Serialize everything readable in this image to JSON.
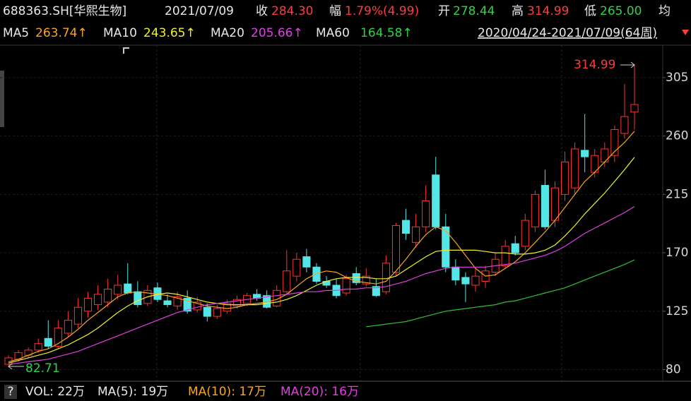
{
  "header": {
    "symbol": "688363.SH[华熙生物]",
    "date": "2021/07/09",
    "close_label": "收",
    "close": "284.30",
    "change_label": "幅",
    "change": "1.79%(4.99)",
    "open_label": "开",
    "open": "278.44",
    "high_label": "高",
    "high": "314.99",
    "low_label": "低",
    "low": "265.00",
    "avg_label": "均",
    "ma_values": [
      "263.74↑",
      "243.65↑",
      "205.66↑",
      "164.58↑"
    ],
    "range": "2020/04/24-2021/07/09(64周)"
  },
  "chart_data": {
    "type": "candlestick",
    "open": [
      84,
      88,
      91,
      95,
      104,
      98,
      108,
      115,
      125,
      130,
      132,
      138,
      146,
      140,
      131,
      143,
      133,
      129,
      135,
      126,
      128,
      121,
      125,
      129,
      131,
      138,
      137,
      129,
      140,
      152,
      167,
      159,
      148,
      145,
      139,
      154,
      146,
      144,
      140,
      155,
      195,
      178,
      190,
      230,
      190,
      159,
      151,
      145,
      148,
      155,
      160,
      177,
      175,
      190,
      222,
      195,
      215,
      220,
      249,
      232,
      240,
      245,
      262,
      278.44
    ],
    "high": [
      91,
      95,
      97,
      104,
      118,
      118,
      125,
      135,
      140,
      145,
      150,
      153,
      162,
      148,
      145,
      147,
      138,
      140,
      141,
      136,
      131,
      130,
      134,
      137,
      139,
      142,
      141,
      145,
      172,
      170,
      173,
      162,
      152,
      150,
      153,
      159,
      158,
      150,
      168,
      193,
      204,
      200,
      222,
      244,
      200,
      165,
      155,
      158,
      160,
      170,
      180,
      183,
      200,
      218,
      234,
      225,
      248,
      255,
      277,
      250,
      255,
      268,
      300,
      314.99
    ],
    "low": [
      82.71,
      86,
      89,
      93,
      96,
      96,
      105,
      112,
      120,
      126,
      128,
      134,
      138,
      128,
      129,
      132,
      128,
      126,
      123,
      124,
      117,
      119,
      123,
      127,
      129,
      133,
      127,
      128,
      138,
      148,
      155,
      146,
      143,
      135,
      137,
      145,
      144,
      136,
      138,
      152,
      180,
      174,
      186,
      188,
      155,
      145,
      132,
      140,
      143,
      152,
      158,
      168,
      172,
      186,
      188,
      190,
      210,
      215,
      232,
      228,
      236,
      240,
      258,
      265.0
    ],
    "close": [
      89,
      93,
      95,
      100,
      98,
      112,
      118,
      128,
      135,
      138,
      142,
      145,
      139,
      130,
      141,
      134,
      130,
      136,
      125,
      132,
      121,
      127,
      131,
      134,
      137,
      135,
      128,
      141,
      156,
      165,
      159,
      148,
      145,
      137,
      150,
      147,
      152,
      137,
      162,
      191,
      185,
      190,
      210,
      190,
      159,
      149,
      146,
      152,
      156,
      165,
      175,
      170,
      195,
      215,
      190,
      220,
      240,
      250,
      244,
      245,
      250,
      265,
      275,
      284.3
    ],
    "up_color": "#ff3232",
    "down_color": "#54e6e6",
    "series": [
      {
        "name": "MA5",
        "color": "#f5a623",
        "values": [
          86,
          88,
          91,
          94,
          96,
          100,
          105,
          111,
          118,
          124,
          130,
          136,
          139,
          140,
          139,
          138,
          137,
          135,
          133,
          131,
          129,
          128,
          127,
          128,
          130,
          131,
          132,
          134,
          138,
          144,
          150,
          154,
          156,
          155,
          151,
          148,
          147,
          146,
          148,
          156,
          165,
          175,
          184,
          190,
          187,
          178,
          168,
          158,
          152,
          153,
          158,
          163,
          170,
          178,
          186,
          195,
          205,
          215,
          225,
          232,
          240,
          248,
          255,
          263.74
        ]
      },
      {
        "name": "MA10",
        "color": "#f0f030",
        "values": [
          85,
          87,
          89,
          91,
          93,
          96,
          99,
          103,
          107,
          112,
          118,
          124,
          129,
          133,
          136,
          138,
          139,
          138,
          136,
          134,
          132,
          131,
          130,
          130,
          130,
          130,
          131,
          132,
          134,
          137,
          141,
          145,
          148,
          150,
          151,
          151,
          151,
          150,
          150,
          152,
          157,
          162,
          167,
          171,
          172,
          172,
          172,
          172,
          171,
          170,
          170,
          169,
          169,
          170,
          172,
          176,
          183,
          191,
          200,
          208,
          216,
          225,
          234,
          243.65
        ]
      },
      {
        "name": "MA20",
        "color": "#e040e0",
        "values": [
          84,
          85,
          86,
          87,
          88,
          90,
          92,
          94,
          97,
          100,
          103,
          106,
          109,
          112,
          115,
          118,
          121,
          124,
          126,
          128,
          130,
          131,
          132,
          133,
          134,
          135,
          136,
          137,
          138,
          139,
          140,
          140,
          141,
          141,
          142,
          142,
          143,
          143,
          144,
          146,
          148,
          151,
          154,
          156,
          158,
          159,
          159,
          159,
          159,
          160,
          161,
          162,
          164,
          166,
          168,
          171,
          175,
          180,
          185,
          189,
          193,
          197,
          201,
          205.66
        ]
      },
      {
        "name": "MA60",
        "color": "#2fc03a",
        "values": [
          null,
          null,
          null,
          null,
          null,
          null,
          null,
          null,
          null,
          null,
          null,
          null,
          null,
          null,
          null,
          null,
          null,
          null,
          null,
          null,
          null,
          null,
          null,
          null,
          null,
          null,
          null,
          null,
          null,
          null,
          null,
          null,
          null,
          null,
          null,
          null,
          113,
          114,
          115,
          116,
          117,
          119,
          121,
          123,
          125,
          126,
          127,
          128,
          129,
          130,
          132,
          133,
          135,
          137,
          139,
          141,
          143,
          146,
          149,
          152,
          155,
          158,
          161,
          164.58
        ]
      }
    ],
    "ylim": [
      71,
      330
    ],
    "yticks": [
      80,
      125,
      170,
      215,
      260,
      305
    ],
    "grid": true
  },
  "footer": {
    "help": "?",
    "items": [
      "VOL: 22万",
      "MA(5): 19万",
      "MA(10): 17万",
      "MA(20): 16万"
    ]
  }
}
